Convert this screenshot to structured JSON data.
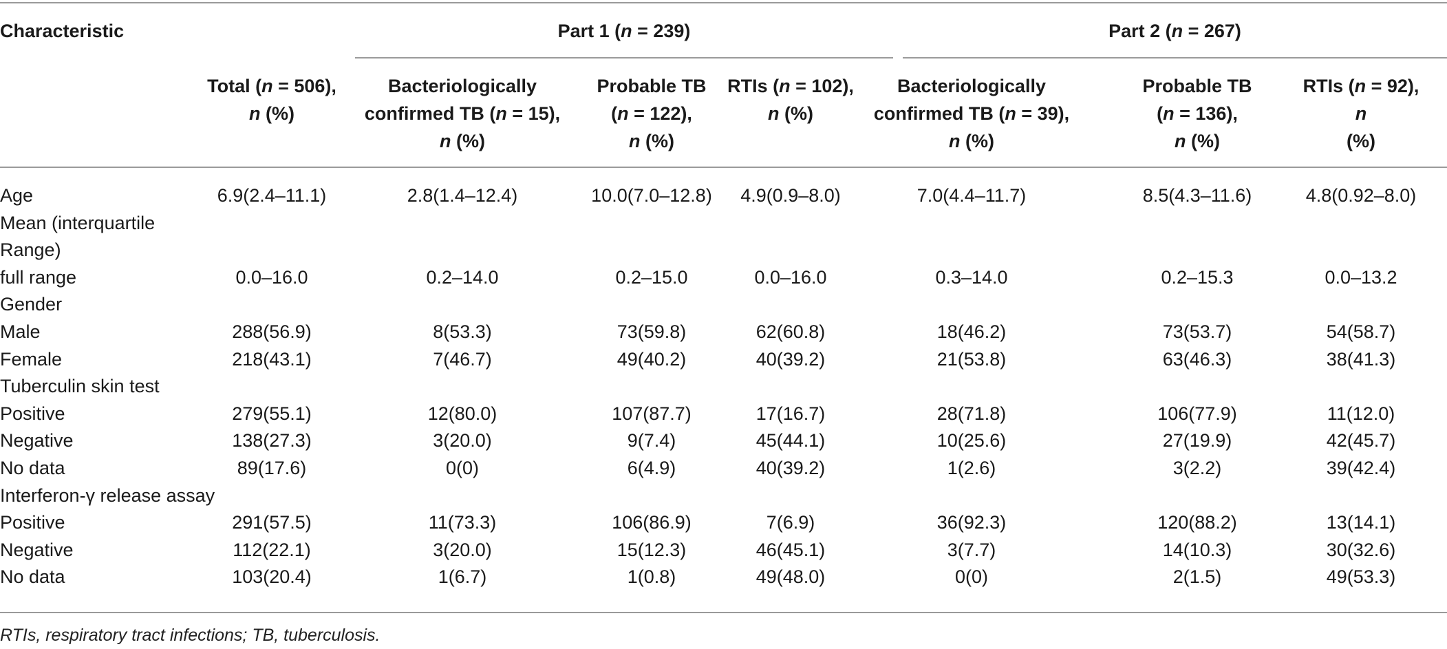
{
  "table": {
    "characteristic_header": "Characteristic",
    "groups": [
      {
        "label": "Part 1 (n = 239)",
        "parts": [
          "Part 1 (",
          "n",
          " = 239)"
        ]
      },
      {
        "label": "Part 2 (n = 267)",
        "parts": [
          "Part 2 (",
          "n",
          " = 267)"
        ]
      }
    ],
    "columns": [
      {
        "lines": [
          [
            "Total (",
            "n",
            " = 506),"
          ],
          [
            "",
            "n",
            " (%)"
          ]
        ]
      },
      {
        "lines": [
          [
            "Bacteriologically",
            "",
            ""
          ],
          [
            "confirmed TB (",
            "n",
            " = 15),"
          ],
          [
            "",
            "n",
            " (%)"
          ]
        ]
      },
      {
        "lines": [
          [
            "Probable TB",
            "",
            ""
          ],
          [
            "(",
            "n",
            " = 122), "
          ],
          [
            "",
            "n",
            " (%)"
          ]
        ]
      },
      {
        "lines": [
          [
            "RTIs (",
            "n",
            " = 102),"
          ],
          [
            "",
            "n",
            " (%)"
          ]
        ]
      },
      {
        "lines": [
          [
            "Bacteriologically",
            "",
            ""
          ],
          [
            "confirmed TB (",
            "n",
            " = 39),"
          ],
          [
            "",
            "n",
            " (%)"
          ]
        ]
      },
      {
        "lines": [
          [
            "Probable TB",
            "",
            ""
          ],
          [
            "(",
            "n",
            " = 136), "
          ],
          [
            "",
            "n",
            " (%)"
          ]
        ]
      },
      {
        "lines": [
          [
            "RTIs (",
            "n",
            " = 92), "
          ],
          [
            "",
            "n",
            ""
          ],
          [
            "(%)",
            "",
            ""
          ]
        ]
      }
    ],
    "rows": [
      {
        "label": "Age",
        "values": [
          "6.9(2.4–11.1)",
          "2.8(1.4–12.4)",
          "10.0(7.0–12.8)",
          "4.9(0.9–8.0)",
          "7.0(4.4–11.7)",
          "8.5(4.3–11.6)",
          "4.8(0.92–8.0)"
        ]
      },
      {
        "label": "Mean (interquartile",
        "values": [
          "",
          "",
          "",
          "",
          "",
          "",
          ""
        ]
      },
      {
        "label": "Range)",
        "values": [
          "",
          "",
          "",
          "",
          "",
          "",
          ""
        ]
      },
      {
        "label": "full range",
        "values": [
          "0.0–16.0",
          "0.2–14.0",
          "0.2–15.0",
          "0.0–16.0",
          "0.3–14.0",
          "0.2–15.3",
          "0.0–13.2"
        ]
      },
      {
        "label": "Gender",
        "values": [
          "",
          "",
          "",
          "",
          "",
          "",
          ""
        ]
      },
      {
        "label": "Male",
        "values": [
          "288(56.9)",
          "8(53.3)",
          "73(59.8)",
          "62(60.8)",
          "18(46.2)",
          "73(53.7)",
          "54(58.7)"
        ]
      },
      {
        "label": "Female",
        "values": [
          "218(43.1)",
          "7(46.7)",
          "49(40.2)",
          "40(39.2)",
          "21(53.8)",
          "63(46.3)",
          "38(41.3)"
        ]
      },
      {
        "label": "Tuberculin skin test",
        "values": [
          "",
          "",
          "",
          "",
          "",
          "",
          ""
        ]
      },
      {
        "label": "Positive",
        "values": [
          "279(55.1)",
          "12(80.0)",
          "107(87.7)",
          "17(16.7)",
          "28(71.8)",
          "106(77.9)",
          "11(12.0)"
        ]
      },
      {
        "label": "Negative",
        "values": [
          "138(27.3)",
          "3(20.0)",
          "9(7.4)",
          "45(44.1)",
          "10(25.6)",
          "27(19.9)",
          "42(45.7)"
        ]
      },
      {
        "label": "No data",
        "values": [
          "89(17.6)",
          "0(0)",
          "6(4.9)",
          "40(39.2)",
          "1(2.6)",
          "3(2.2)",
          "39(42.4)"
        ]
      },
      {
        "label": "Interferon-γ release assay",
        "values": [
          "",
          "",
          "",
          "",
          "",
          "",
          ""
        ]
      },
      {
        "label": "Positive",
        "values": [
          "291(57.5)",
          "11(73.3)",
          "106(86.9)",
          "7(6.9)",
          "36(92.3)",
          "120(88.2)",
          "13(14.1)"
        ]
      },
      {
        "label": "Negative",
        "values": [
          "112(22.1)",
          "3(20.0)",
          "15(12.3)",
          "46(45.1)",
          "3(7.7)",
          "14(10.3)",
          "30(32.6)"
        ]
      },
      {
        "label": "No data",
        "values": [
          "103(20.4)",
          "1(6.7)",
          "1(0.8)",
          "49(48.0)",
          "0(0)",
          "2(1.5)",
          "49(53.3)"
        ]
      }
    ],
    "footnote": "RTIs, respiratory tract infections; TB, tuberculosis."
  }
}
